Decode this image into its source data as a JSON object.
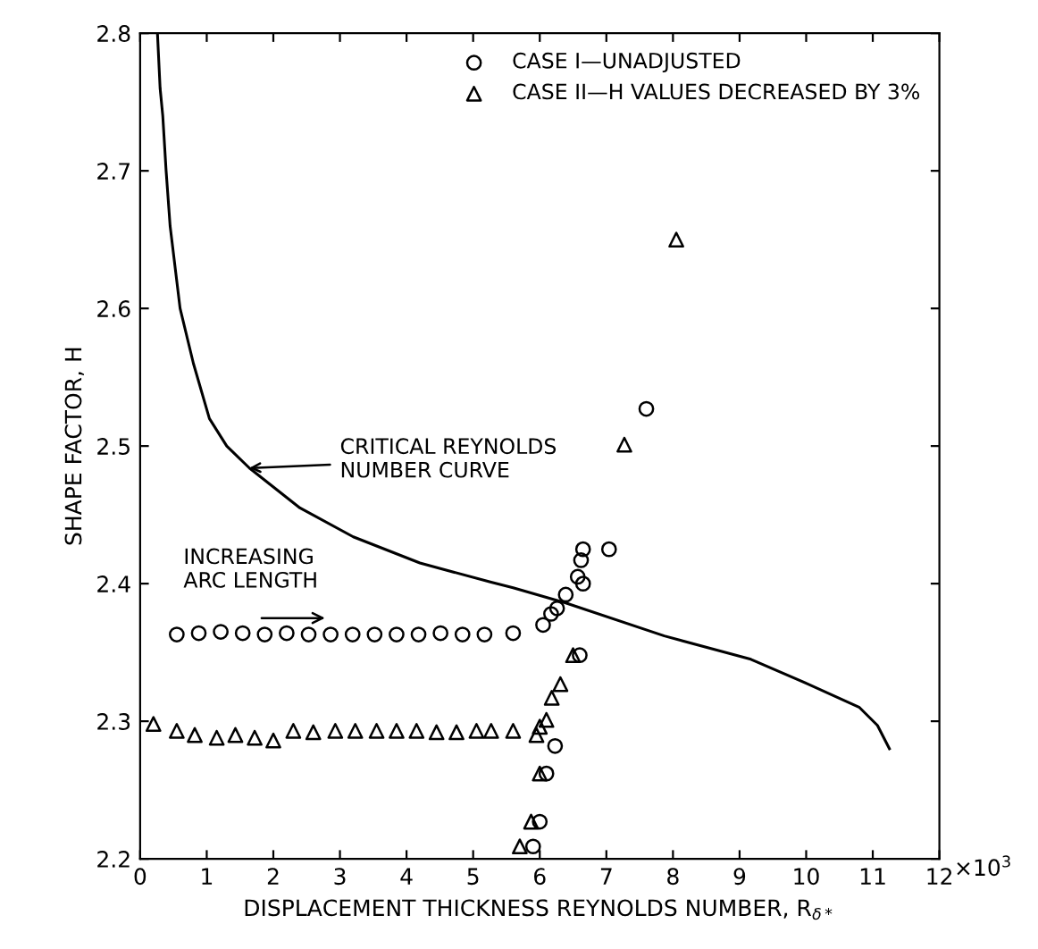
{
  "chart_data": {
    "type": "scatter",
    "xlabel": "DISPLACEMENT THICKNESS REYNOLDS NUMBER, R$_{δ*}$",
    "ylabel": "SHAPE FACTOR, H",
    "xlim": [
      0,
      12
    ],
    "ylim": [
      2.2,
      2.8
    ],
    "xticks": [
      0,
      1,
      2,
      3,
      4,
      5,
      6,
      7,
      8,
      9,
      10,
      11,
      12
    ],
    "yticks": [
      2.2,
      2.3,
      2.4,
      2.5,
      2.6,
      2.7,
      2.8
    ],
    "grid": false,
    "legend": "top right",
    "series": [
      {
        "name": "CASE I—UNADJUSTED",
        "marker": "circle",
        "color": "#000000",
        "x": [
          0.55,
          0.88,
          1.21,
          1.54,
          1.87,
          2.2,
          2.53,
          2.86,
          3.19,
          3.52,
          3.85,
          4.18,
          4.51,
          4.84,
          5.17,
          5.6,
          6.05,
          6.17,
          6.26,
          6.39,
          6.57,
          6.62,
          6.65,
          6.65,
          7.04,
          6.6,
          6.23,
          6.1,
          6.0,
          5.9,
          7.6
        ],
        "values": [
          2.363,
          2.364,
          2.365,
          2.364,
          2.363,
          2.364,
          2.363,
          2.363,
          2.363,
          2.363,
          2.363,
          2.363,
          2.364,
          2.363,
          2.363,
          2.364,
          2.37,
          2.378,
          2.382,
          2.392,
          2.405,
          2.417,
          2.425,
          2.4,
          2.425,
          2.348,
          2.282,
          2.262,
          2.227,
          2.209,
          2.527
        ]
      },
      {
        "name": "CASE II—H VALUES DECREASED BY 3%",
        "marker": "triangle",
        "color": "#000000",
        "x": [
          0.2,
          0.55,
          0.82,
          1.15,
          1.43,
          1.72,
          2.0,
          2.3,
          2.6,
          2.93,
          3.23,
          3.55,
          3.85,
          4.15,
          4.45,
          4.75,
          5.05,
          5.27,
          5.6,
          5.95,
          6.0,
          6.1,
          6.18,
          6.31,
          6.5,
          6.0,
          5.87,
          5.7,
          7.27,
          8.05
        ],
        "values": [
          2.298,
          2.293,
          2.29,
          2.288,
          2.29,
          2.288,
          2.286,
          2.293,
          2.292,
          2.293,
          2.293,
          2.293,
          2.293,
          2.293,
          2.292,
          2.292,
          2.293,
          2.293,
          2.293,
          2.29,
          2.296,
          2.301,
          2.317,
          2.327,
          2.348,
          2.262,
          2.227,
          2.209,
          2.501,
          2.65
        ]
      },
      {
        "type": "line",
        "marker": "none",
        "line_style": "solid",
        "color": "#000000",
        "x": [
          0.26,
          0.3,
          0.34,
          0.39,
          0.45,
          0.6,
          0.8,
          1.04,
          1.3,
          1.64,
          2.4,
          3.2,
          4.2,
          5.27,
          5.6,
          6.39,
          7.87,
          9.17,
          10.03,
          10.8,
          11.07,
          11.25
        ],
        "values": [
          2.8,
          2.76,
          2.74,
          2.7,
          2.66,
          2.6,
          2.56,
          2.52,
          2.5,
          2.484,
          2.455,
          2.434,
          2.415,
          2.401,
          2.397,
          2.386,
          2.362,
          2.345,
          2.327,
          2.31,
          2.297,
          2.28
        ]
      }
    ],
    "annotations": [
      "CRITICAL REYNOLDS\nNUMBER CURVE",
      "INCREASING\nARC LENGTH",
      "×10$^{3}$"
    ]
  }
}
